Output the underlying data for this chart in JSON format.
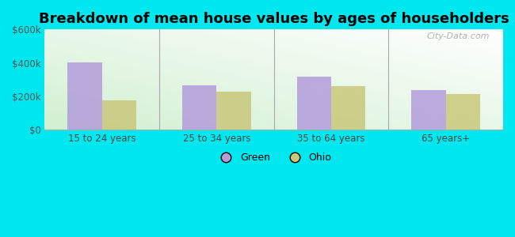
{
  "title": "Breakdown of mean house values by ages of householders",
  "categories": [
    "15 to 24 years",
    "25 to 34 years",
    "35 to 64 years",
    "65 years+"
  ],
  "green_values": [
    405000,
    265000,
    320000,
    237000
  ],
  "ohio_values": [
    178000,
    228000,
    263000,
    213000
  ],
  "green_color": "#b39ddb",
  "ohio_color": "#c8c87a",
  "ylim": [
    0,
    600000
  ],
  "yticks": [
    0,
    200000,
    400000,
    600000
  ],
  "ytick_labels": [
    "$0",
    "$200k",
    "$400k",
    "$600k"
  ],
  "background_color": "#00e8ef",
  "legend_labels": [
    "Green",
    "Ohio"
  ],
  "watermark": "City-Data.com",
  "title_fontsize": 13,
  "bar_width": 0.3
}
